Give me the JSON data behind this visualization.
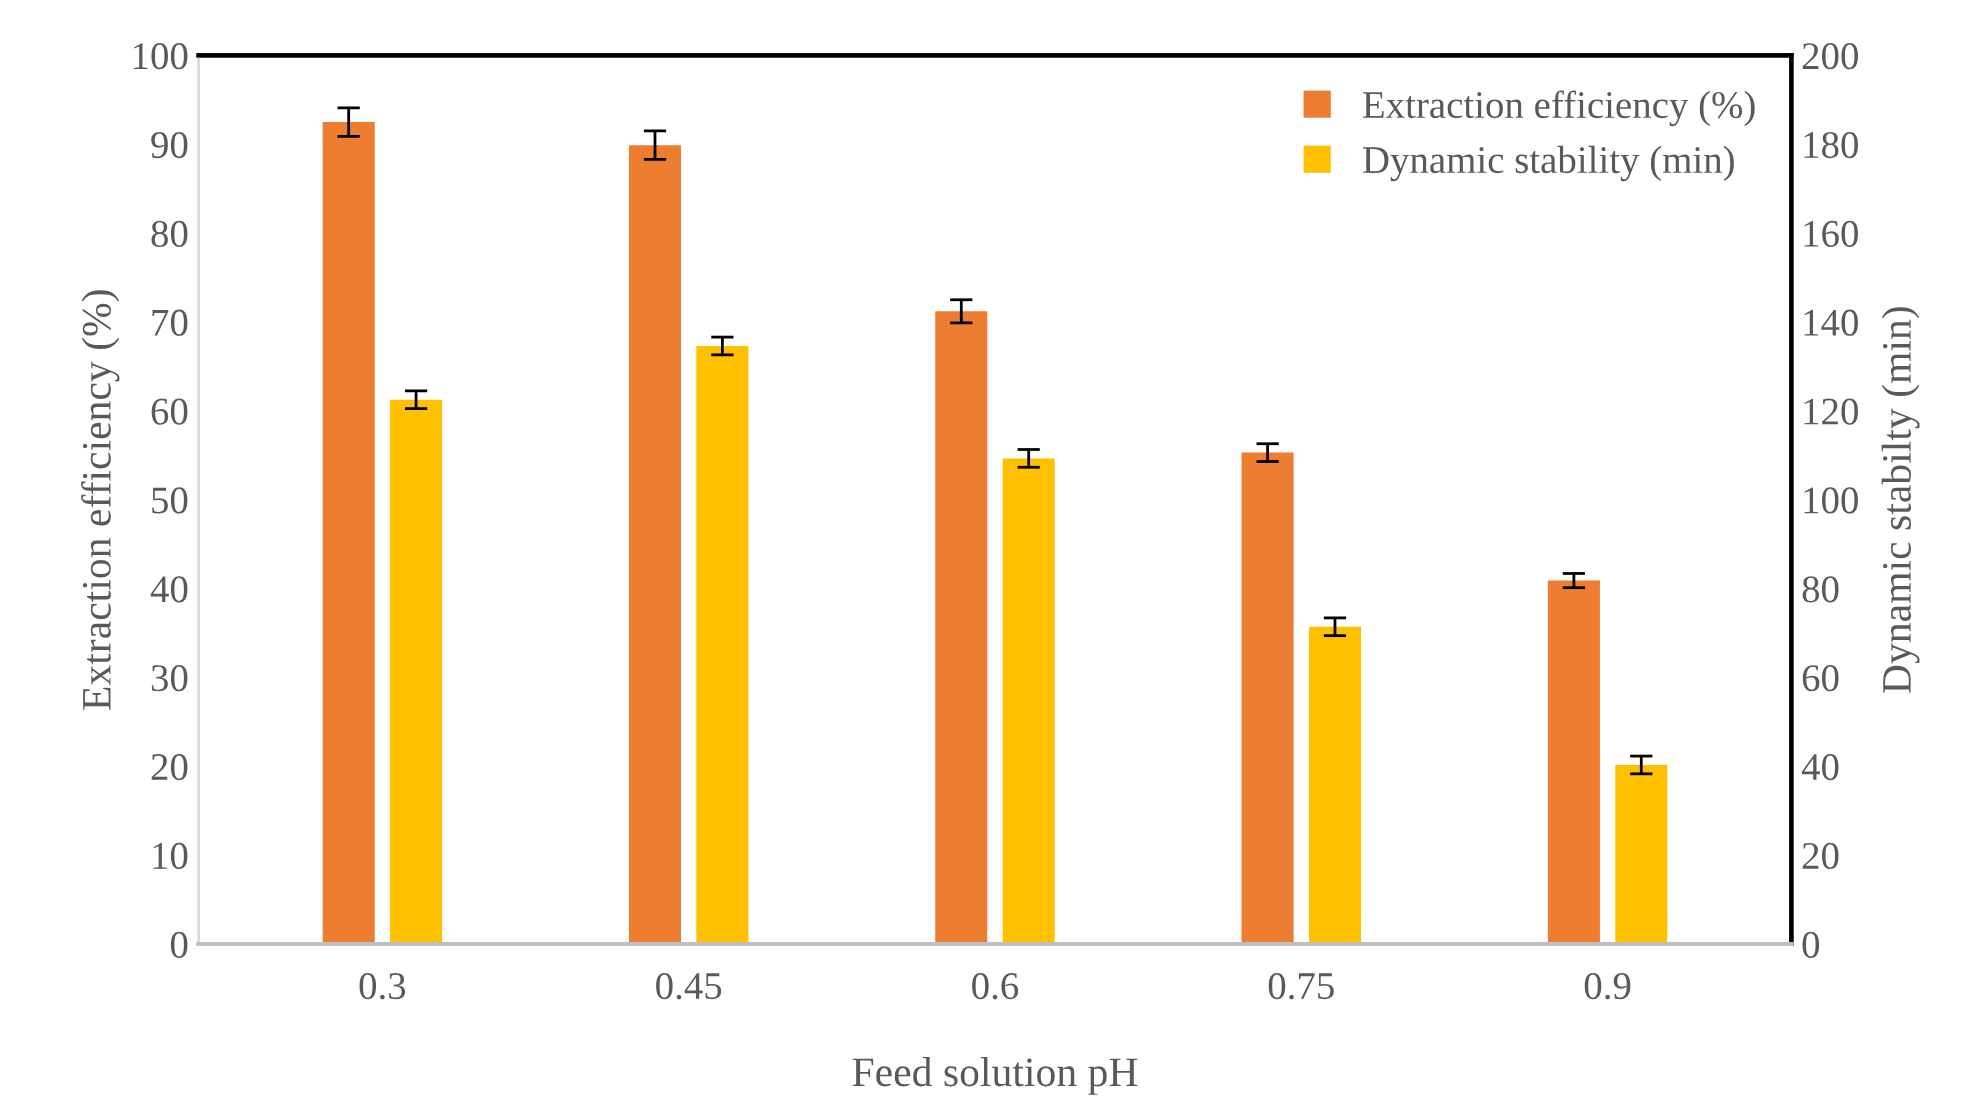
{
  "chart_data": {
    "type": "bar",
    "xlabel": "Feed solution pH",
    "ylabel": "Extraction efficiency (%)",
    "y2label": "Dynamic stabilty (min)",
    "categories": [
      "0.3",
      "0.45",
      "0.6",
      "0.75",
      "0.9"
    ],
    "series": [
      {
        "name": "Extraction efficiency (%)",
        "color": "#ed7d31",
        "values": [
          92.5,
          89.9,
          71.2,
          55.3,
          40.9
        ],
        "errors": [
          1.6,
          1.6,
          1.3,
          1,
          0.8
        ]
      },
      {
        "name": "Dynamic stability (min)",
        "color": "#ffc000",
        "axis": "y2",
        "values": [
          122.5,
          134.6,
          109.3,
          71.4,
          40.3
        ],
        "errors": [
          2,
          2,
          2,
          2,
          2
        ]
      }
    ],
    "ylim": [
      0,
      100
    ],
    "yticks": [
      0,
      10,
      20,
      30,
      40,
      50,
      60,
      70,
      80,
      90,
      100
    ],
    "y2lim": [
      0,
      200
    ],
    "y2ticks": [
      0,
      20,
      40,
      60,
      80,
      100,
      120,
      140,
      160,
      180,
      200
    ],
    "legend": "top right",
    "grid": false
  }
}
